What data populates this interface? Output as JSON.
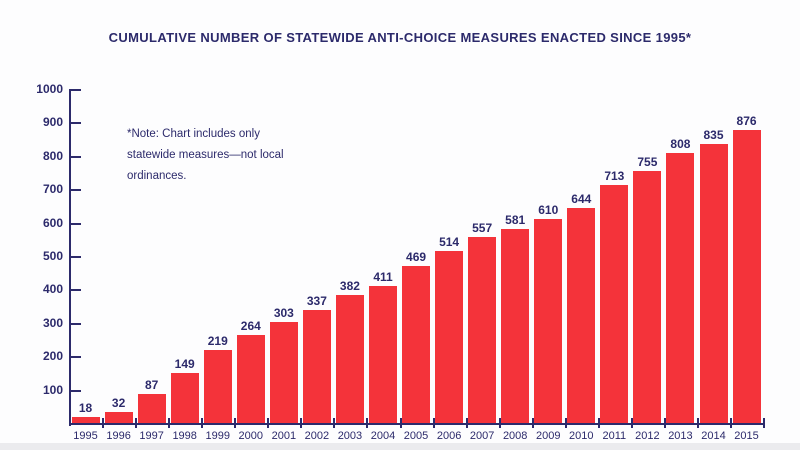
{
  "chart_data": {
    "type": "bar",
    "title": "CUMULATIVE NUMBER OF STATEWIDE ANTI-CHOICE MEASURES ENACTED SINCE 1995*",
    "note_lines": [
      "*Note: Chart includes only",
      "statewide measures—not local",
      "ordinances."
    ],
    "categories": [
      "1995",
      "1996",
      "1997",
      "1998",
      "1999",
      "2000",
      "2001",
      "2002",
      "2003",
      "2004",
      "2005",
      "2006",
      "2007",
      "2008",
      "2009",
      "2010",
      "2011",
      "2012",
      "2013",
      "2014",
      "2015"
    ],
    "values": [
      18,
      32,
      87,
      149,
      219,
      264,
      303,
      337,
      382,
      411,
      469,
      514,
      557,
      581,
      610,
      644,
      713,
      755,
      808,
      835,
      876
    ],
    "value_labels_shown": true,
    "xlabel": "",
    "ylabel": "",
    "ylim": [
      0,
      1000
    ],
    "ytick_labels": [
      "100",
      "200",
      "300",
      "400",
      "500",
      "600",
      "700",
      "800",
      "900",
      "1000"
    ],
    "ytick_step": 100,
    "grid": false,
    "legend": "none",
    "bar_color": "#f4333a",
    "ink_color": "#2c2a6b",
    "background_color": "#fdfdfe",
    "bottom_strip_color": "#ebebee"
  }
}
